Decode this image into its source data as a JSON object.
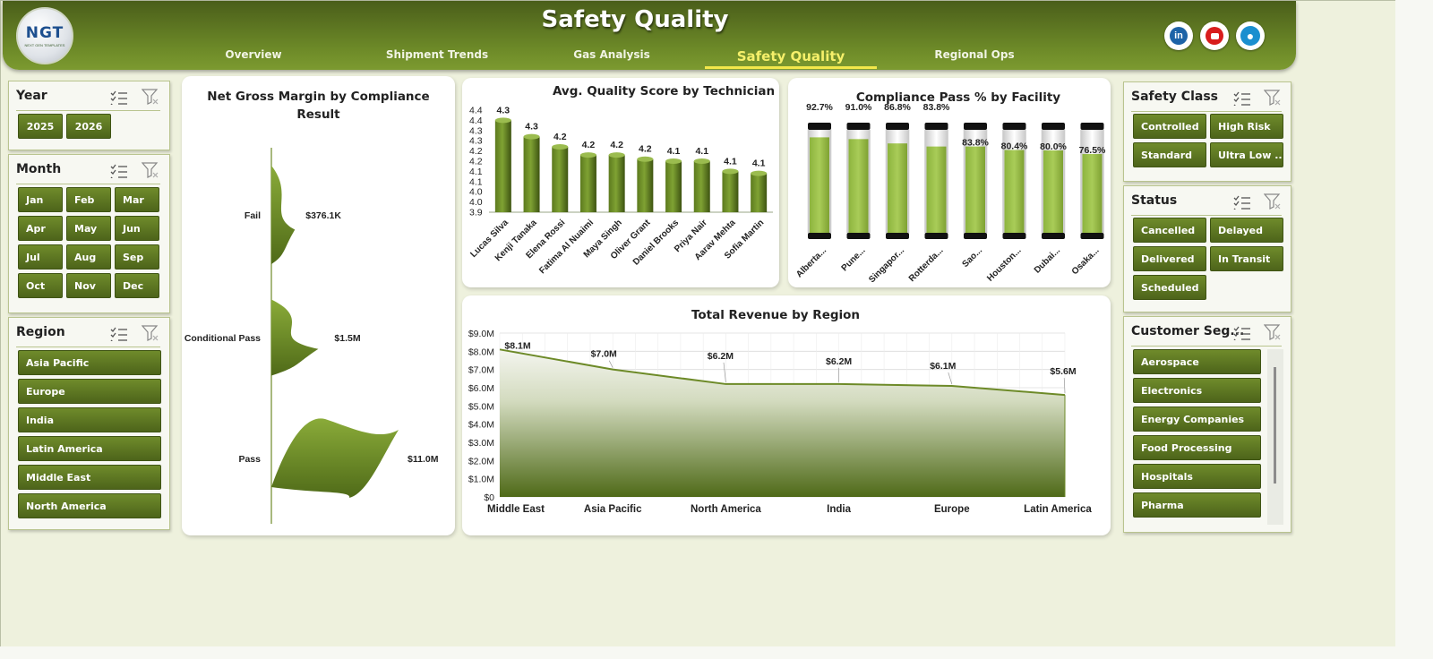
{
  "header": {
    "title": "Safety Quality",
    "logo_text": "NGT",
    "logo_sub": "NEXT GEN TEMPLATES",
    "tabs": [
      {
        "label": "Overview",
        "active": false
      },
      {
        "label": "Shipment Trends",
        "active": false
      },
      {
        "label": "Gas Analysis",
        "active": false
      },
      {
        "label": "Safety Quality",
        "active": true
      },
      {
        "label": "Regional Ops",
        "active": false
      }
    ],
    "social": [
      "linkedin-icon",
      "youtube-icon",
      "globe-icon"
    ],
    "linkedin_label": "in"
  },
  "slicers": {
    "year": {
      "title": "Year",
      "items": [
        "2025",
        "2026"
      ]
    },
    "month": {
      "title": "Month",
      "items": [
        "Jan",
        "Feb",
        "Mar",
        "Apr",
        "May",
        "Jun",
        "Jul",
        "Aug",
        "Sep",
        "Oct",
        "Nov",
        "Dec"
      ]
    },
    "region": {
      "title": "Region",
      "items": [
        "Asia Pacific",
        "Europe",
        "India",
        "Latin America",
        "Middle East",
        "North America"
      ]
    },
    "safety_class": {
      "title": "Safety Class",
      "items": [
        "Controlled",
        "High Risk",
        "Standard",
        "Ultra Low ..."
      ]
    },
    "status": {
      "title": "Status",
      "items": [
        "Cancelled",
        "Delayed",
        "Delivered",
        "In Transit",
        "Scheduled"
      ]
    },
    "customer_segment": {
      "title": "Customer Seg...",
      "items": [
        "Aerospace",
        "Electronics",
        "Energy Companies",
        "Food Processing",
        "Hospitals",
        "Pharma"
      ]
    }
  },
  "colors": {
    "accent": "#6d8a28",
    "dark": "#4d641a",
    "bar_light": "#a4c652",
    "highlight": "#f3e84a"
  },
  "chart_data": [
    {
      "id": "margin",
      "type": "area",
      "title": "Net Gross Margin by Compliance Result",
      "title_lines": [
        "Net Gross Margin by Compliance",
        "Result"
      ],
      "categories": [
        "Fail",
        "Conditional Pass",
        "Pass"
      ],
      "values": [
        376.1,
        1500,
        11000
      ],
      "unit": "$K",
      "labels": [
        "$376.1K",
        "$1.5M",
        "$11.0M"
      ]
    },
    {
      "id": "quality",
      "type": "bar",
      "title": "Avg. Quality Score by Technician",
      "categories": [
        "Lucas Silva",
        "Kenji Tanaka",
        "Elena Rossi",
        "Fatima Al Nuaimi",
        "Maya Singh",
        "Oliver Grant",
        "Daniel Brooks",
        "Priya Nair",
        "Aarav Mehta",
        "Sofia Martin"
      ],
      "values": [
        4.35,
        4.27,
        4.22,
        4.18,
        4.18,
        4.16,
        4.15,
        4.15,
        4.1,
        4.09
      ],
      "labels": [
        "4.3",
        "4.3",
        "4.2",
        "4.2",
        "4.2",
        "4.2",
        "4.1",
        "4.1",
        "4.1",
        "4.1"
      ],
      "ylim": [
        3.9,
        4.4
      ],
      "yticks": [
        "3.9",
        "4.0",
        "4.0",
        "4.1",
        "4.1",
        "4.2",
        "4.2",
        "4.3",
        "4.3",
        "4.4",
        "4.4"
      ]
    },
    {
      "id": "compliance",
      "type": "bar",
      "title": "Compliance Pass % by Facility",
      "categories": [
        "Alberta...",
        "Pune...",
        "Singapor...",
        "Rotterda...",
        "Sao...",
        "Houston...",
        "Dubai...",
        "Osaka..."
      ],
      "values": [
        92.7,
        91.0,
        86.8,
        83.8,
        83.8,
        80.4,
        80.0,
        76.5
      ],
      "labels": [
        "92.7%",
        "91.0%",
        "86.8%",
        "83.8%",
        "83.8%",
        "80.4%",
        "80.0%",
        "76.5%"
      ],
      "ylim": [
        0,
        100
      ]
    },
    {
      "id": "revenue",
      "type": "area",
      "title": "Total Revenue  by Region",
      "categories": [
        "Middle East",
        "Asia Pacific",
        "North America",
        "India",
        "Europe",
        "Latin America"
      ],
      "values": [
        8.1,
        7.0,
        6.2,
        6.2,
        6.1,
        5.6
      ],
      "labels": [
        "$8.1M",
        "$7.0M",
        "$6.2M",
        "$6.2M",
        "$6.1M",
        "$5.6M"
      ],
      "ylim": [
        0,
        9
      ],
      "yticks": [
        "$0",
        "$1.0M",
        "$2.0M",
        "$3.0M",
        "$4.0M",
        "$5.0M",
        "$6.0M",
        "$7.0M",
        "$8.0M",
        "$9.0M"
      ],
      "grid": true
    }
  ]
}
